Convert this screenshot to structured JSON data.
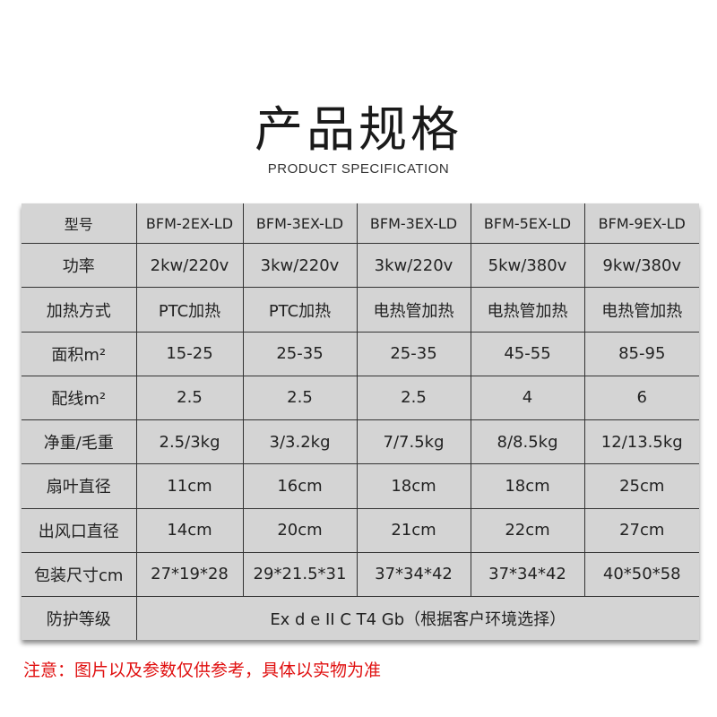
{
  "title": "产品规格",
  "subtitle": "PRODUCT SPECIFICATION",
  "table": {
    "rows": [
      {
        "label": "型号",
        "values": [
          "BFM-2EX-LD",
          "BFM-3EX-LD",
          "BFM-3EX-LD",
          "BFM-5EX-LD",
          "BFM-9EX-LD"
        ]
      },
      {
        "label": "功率",
        "values": [
          "2kw/220v",
          "3kw/220v",
          "3kw/220v",
          "5kw/380v",
          "9kw/380v"
        ]
      },
      {
        "label": "加热方式",
        "values": [
          "PTC加热",
          "PTC加热",
          "电热管加热",
          "电热管加热",
          "电热管加热"
        ]
      },
      {
        "label": "面积m²",
        "values": [
          "15-25",
          "25-35",
          "25-35",
          "45-55",
          "85-95"
        ]
      },
      {
        "label": "配线m²",
        "values": [
          "2.5",
          "2.5",
          "2.5",
          "4",
          "6"
        ]
      },
      {
        "label": "净重/毛重",
        "values": [
          "2.5/3kg",
          "3/3.2kg",
          "7/7.5kg",
          "8/8.5kg",
          "12/13.5kg"
        ]
      },
      {
        "label": "扇叶直径",
        "values": [
          "11cm",
          "16cm",
          "18cm",
          "18cm",
          "25cm"
        ]
      },
      {
        "label": "出风口直径",
        "values": [
          "14cm",
          "20cm",
          "21cm",
          "22cm",
          "27cm"
        ]
      },
      {
        "label": "包装尺寸cm",
        "values": [
          "27*19*28",
          "29*21.5*31",
          "37*34*42",
          "37*34*42",
          "40*50*58"
        ]
      }
    ],
    "protection": {
      "label": "防护等级",
      "value": "Ex d e II C T4 Gb（根据客户环境选择）"
    }
  },
  "note": "注意：图片以及参数仅供参考，具体以实物为准",
  "colors": {
    "note": "#e01010",
    "table_bg": "#d4d4d4"
  }
}
